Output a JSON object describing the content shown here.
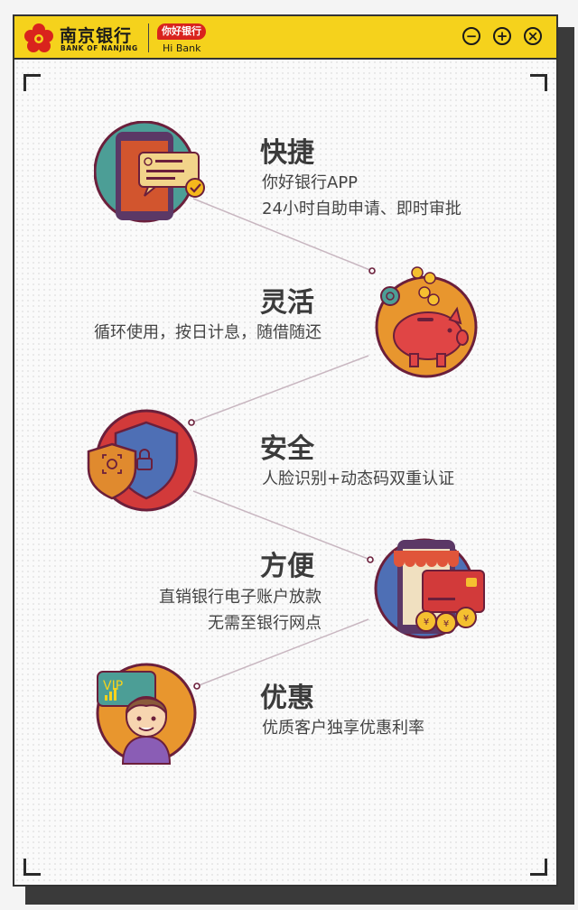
{
  "header": {
    "bank_name_cn": "南京银行",
    "bank_name_en": "BANK OF NANJING",
    "app_badge": "你好银行",
    "app_name": "Hi Bank",
    "controls": {
      "minimize": "−",
      "maximize": "+",
      "close": "×"
    }
  },
  "features": [
    {
      "title": "快捷",
      "lines": [
        "你好银行APP",
        "24小时自助申请、即时审批"
      ],
      "icon": "phone-message-icon"
    },
    {
      "title": "灵活",
      "lines": [
        "循环使用，按日计息，随借随还"
      ],
      "icon": "piggy-bank-icon"
    },
    {
      "title": "安全",
      "lines": [
        "人脸识别+动态码双重认证"
      ],
      "icon": "shield-icon"
    },
    {
      "title": "方便",
      "lines": [
        "直销银行电子账户放款",
        "无需至银行网点"
      ],
      "icon": "mobile-card-icon"
    },
    {
      "title": "优惠",
      "lines": [
        "优质客户独享优惠利率"
      ],
      "icon": "vip-user-icon"
    }
  ],
  "vip_label": "VIP",
  "colors": {
    "titlebar": "#f5d21c",
    "brand_red": "#d9231d",
    "frame": "#333333",
    "circle_border": "#6b1f3b"
  }
}
